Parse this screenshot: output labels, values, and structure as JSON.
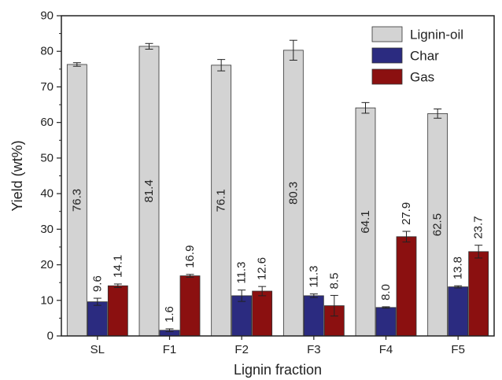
{
  "chart_data": {
    "type": "bar",
    "categories": [
      "SL",
      "F1",
      "F2",
      "F3",
      "F4",
      "F5"
    ],
    "xlabel": "Lignin fraction",
    "ylabel": "Yield (wt%)",
    "ylim": [
      0,
      90
    ],
    "yticks": [
      0,
      10,
      20,
      30,
      40,
      50,
      60,
      70,
      80,
      90
    ],
    "grid": false,
    "legend_position": "top-right",
    "series": [
      {
        "name": "Lignin-oil",
        "color": "#d3d3d3",
        "values": [
          76.3,
          81.4,
          76.1,
          80.3,
          64.1,
          62.5
        ],
        "errors": [
          0.5,
          0.8,
          1.6,
          2.8,
          1.5,
          1.3
        ],
        "labels": [
          "76.3",
          "81.4",
          "76.1",
          "80.3",
          "64.1",
          "62.5"
        ]
      },
      {
        "name": "Char",
        "color": "#2b2b80",
        "values": [
          9.6,
          1.6,
          11.3,
          11.3,
          8.0,
          13.8
        ],
        "errors": [
          1.0,
          0.4,
          1.6,
          0.5,
          0.2,
          0.3
        ],
        "labels": [
          "9.6",
          "1.6",
          "11.3",
          "11.3",
          "8.0",
          "13.8"
        ]
      },
      {
        "name": "Gas",
        "color": "#8b1010",
        "values": [
          14.1,
          16.9,
          12.6,
          8.5,
          27.9,
          23.7
        ],
        "errors": [
          0.5,
          0.4,
          1.3,
          2.9,
          1.5,
          1.8
        ],
        "labels": [
          "14.1",
          "16.9",
          "12.6",
          "8.5",
          "27.9",
          "23.7"
        ]
      }
    ]
  }
}
